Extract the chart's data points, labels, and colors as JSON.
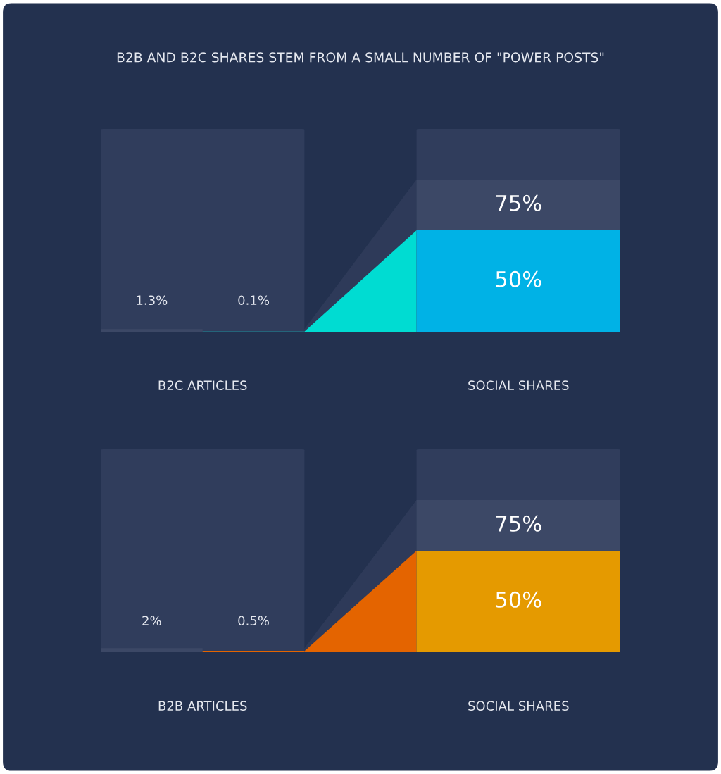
{
  "chart_data": [
    {
      "type": "other",
      "title": "B2B AND B2C SHARES STEM FROM A SMALL NUMBER OF \"POWER POSTS\"",
      "categories": [
        "B2C ARTICLES",
        "SOCIAL SHARES"
      ],
      "series": [
        {
          "color": "#3c4866",
          "values": [
            1.3,
            75
          ],
          "value_labels": [
            "1.3%",
            "75%"
          ]
        },
        {
          "colors": [
            "#00dcd2",
            "#00b2e6"
          ],
          "values": [
            0.1,
            50
          ],
          "value_labels": [
            "0.1%",
            "50%"
          ]
        }
      ]
    },
    {
      "type": "other",
      "categories": [
        "B2B ARTICLES",
        "SOCIAL SHARES"
      ],
      "series": [
        {
          "color": "#3c4866",
          "values": [
            2,
            75
          ],
          "value_labels": [
            "2%",
            "75%"
          ]
        },
        {
          "colors": [
            "#e46400",
            "#e59a00"
          ],
          "values": [
            0.5,
            50
          ],
          "value_labels": [
            "0.5%",
            "50%"
          ]
        }
      ]
    }
  ]
}
